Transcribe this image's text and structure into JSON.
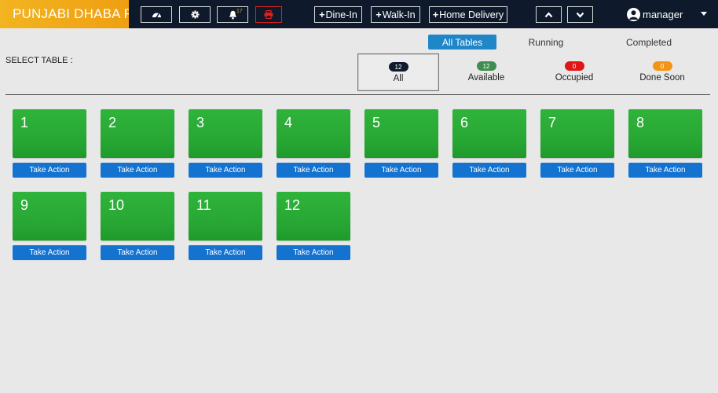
{
  "header": {
    "brand": "PUNJABI DHABA RE",
    "notification_count": "17",
    "dine_in": "Dine-In",
    "walk_in": "Walk-In",
    "home_delivery": "Home Delivery",
    "plus": "+",
    "username": "manager",
    "icons": [
      "dashboard-icon",
      "gear-icon",
      "bell-icon",
      "printer-icon",
      "chevron-up-icon",
      "chevron-down-icon",
      "user-icon",
      "caret-down-icon"
    ]
  },
  "tabs": [
    {
      "label": "All Tables",
      "active": true
    },
    {
      "label": "Running",
      "active": false
    },
    {
      "label": "Completed",
      "active": false
    }
  ],
  "select_label": "SELECT TABLE :",
  "filters": [
    {
      "count": "12",
      "label": "All",
      "color": "#0f1b2d",
      "active": true
    },
    {
      "count": "12",
      "label": "Available",
      "color": "#3f8e4f",
      "active": false
    },
    {
      "count": "0",
      "label": "Occupied",
      "color": "#e01616",
      "active": false
    },
    {
      "count": "0",
      "label": "Done Soon",
      "color": "#f29415",
      "active": false
    }
  ],
  "tables": [
    {
      "number": "1",
      "action": "Take Action"
    },
    {
      "number": "2",
      "action": "Take Action"
    },
    {
      "number": "3",
      "action": "Take Action"
    },
    {
      "number": "4",
      "action": "Take Action"
    },
    {
      "number": "5",
      "action": "Take Action"
    },
    {
      "number": "6",
      "action": "Take Action"
    },
    {
      "number": "7",
      "action": "Take Action"
    },
    {
      "number": "8",
      "action": "Take Action"
    },
    {
      "number": "9",
      "action": "Take Action"
    },
    {
      "number": "10",
      "action": "Take Action"
    },
    {
      "number": "11",
      "action": "Take Action"
    },
    {
      "number": "12",
      "action": "Take Action"
    }
  ],
  "colors": {
    "header_bg": "#0e1a2b",
    "brand_bg": "#f2b420",
    "tile_green": "#2aad36",
    "action_blue": "#1473d0",
    "tab_active": "#1f86c8"
  }
}
